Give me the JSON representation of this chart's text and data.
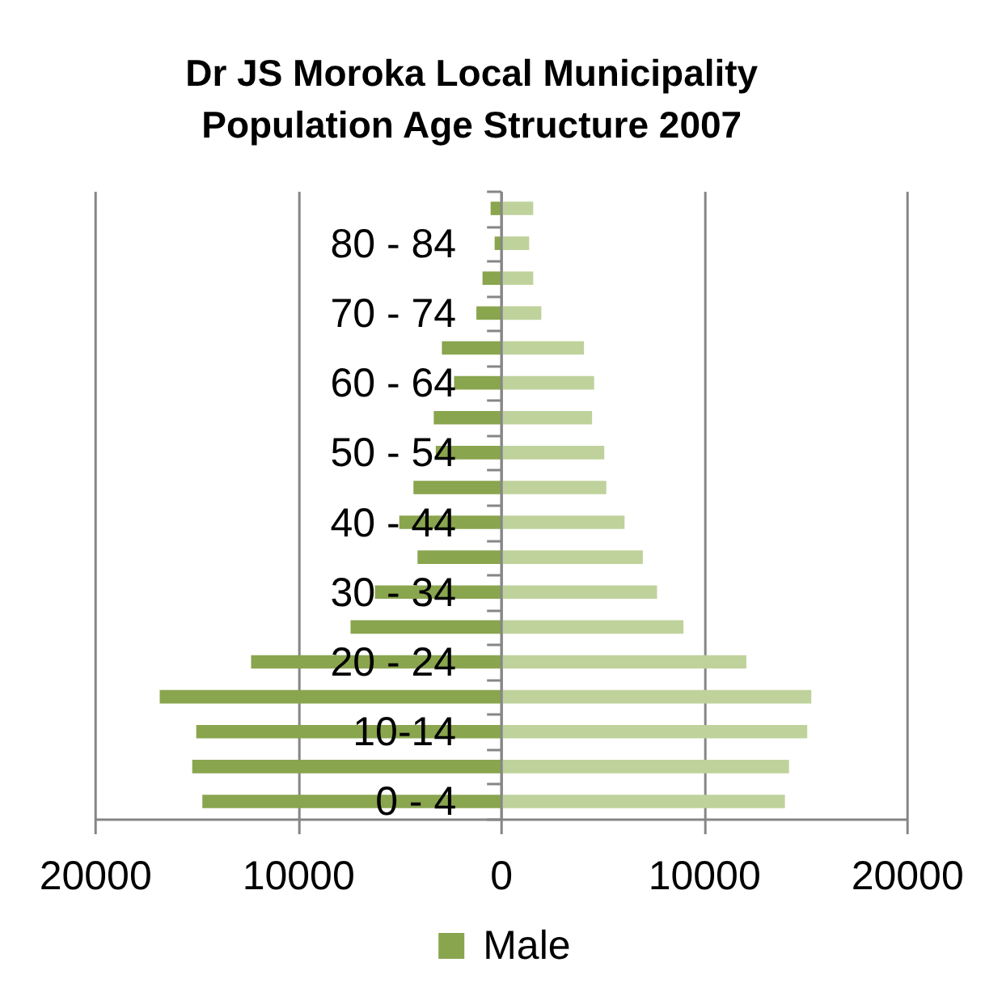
{
  "chart_data": {
    "type": "bar",
    "orientation": "horizontal",
    "stacked": true,
    "title": "Dr JS Moroka Local Municipality Population Age Structure 2007",
    "categories": [
      null,
      "80 - 84",
      null,
      "70 - 74",
      null,
      "60 - 64",
      null,
      "50 - 54",
      null,
      "40 - 44",
      null,
      "30 - 34",
      null,
      "20 - 24",
      null,
      "10-14",
      null,
      "0 - 4"
    ],
    "series": [
      {
        "name": "Male",
        "color": "#89a54e",
        "values": [
          -500,
          -300,
          -900,
          -1200,
          -2900,
          -2300,
          -3300,
          -3200,
          -4300,
          -5000,
          -4100,
          -6200,
          -7400,
          -12300,
          -16800,
          -15000,
          -15200,
          -14700
        ]
      },
      {
        "color": "#bfd29b",
        "values": [
          1600,
          1400,
          1600,
          2000,
          4100,
          4600,
          4500,
          5100,
          5200,
          6100,
          7000,
          7700,
          9000,
          12100,
          15300,
          15100,
          14200,
          14000
        ]
      }
    ],
    "xlim": [
      -20000,
      20000
    ],
    "xticks": [
      {
        "value": -20000,
        "label": "20000"
      },
      {
        "value": -10000,
        "label": "10000"
      },
      0,
      10000,
      20000
    ],
    "grid": "x",
    "legend": "bottom"
  }
}
